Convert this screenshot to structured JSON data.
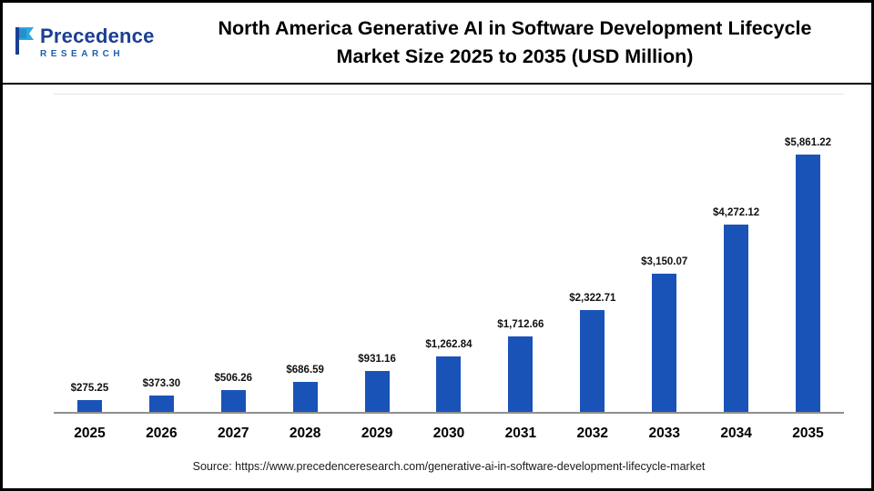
{
  "header": {
    "logo": {
      "name": "Precedence",
      "sub": "RESEARCH"
    },
    "title_line1": "North America Generative AI in Software Development Lifecycle",
    "title_line2": "Market Size 2025 to 2035 (USD Million)"
  },
  "chart_data": {
    "type": "bar",
    "title": "North America Generative AI in Software Development Lifecycle Market Size 2025 to 2035 (USD Million)",
    "categories": [
      "2025",
      "2026",
      "2027",
      "2028",
      "2029",
      "2030",
      "2031",
      "2032",
      "2033",
      "2034",
      "2035"
    ],
    "values": [
      275.25,
      373.3,
      506.26,
      686.59,
      931.16,
      1262.84,
      1712.66,
      2322.71,
      3150.07,
      4272.12,
      5861.22
    ],
    "value_labels": [
      "$275.25",
      "$373.30",
      "$506.26",
      "$686.59",
      "$931.16",
      "$1,262.84",
      "$1,712.66",
      "$2,322.71",
      "$3,150.07",
      "$4,272.12",
      "$5,861.22"
    ],
    "xlabel": "",
    "ylabel": "",
    "ylim": [
      0,
      6000
    ],
    "grid": false,
    "legend": "none",
    "bar_color": "#1a53b8"
  },
  "footer": {
    "source": "Source: https://www.precedenceresearch.com/generative-ai-in-software-development-lifecycle-market"
  }
}
